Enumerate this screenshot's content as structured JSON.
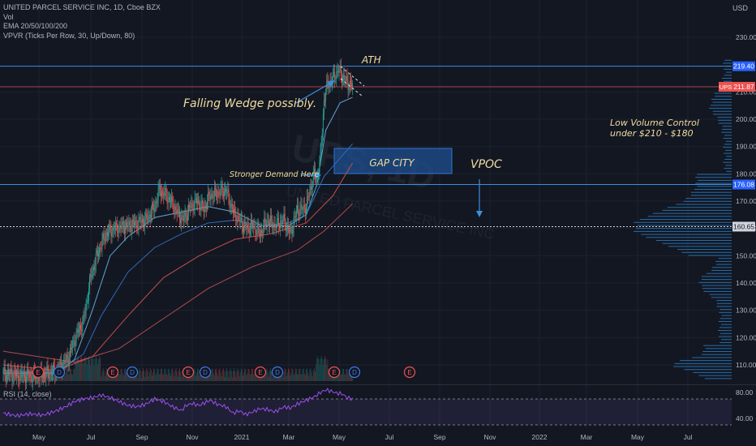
{
  "legend": {
    "symbol": "UNITED PARCEL SERVICE INC, 1D, Cboe BZX",
    "vol": "Vol",
    "ema": "EMA 20/50/100/200",
    "vpvr": "VPVR (Ticks Per Row, 30, Up/Down, 80)"
  },
  "rsi_label": "RSI (14, close)",
  "currency": "USD",
  "watermark": "UPS, 1D",
  "watermark_sub": "UNITED PARCEL SERVICE INC",
  "annotations": {
    "ath": "ATH",
    "wedge": "Falling Wedge possibly.",
    "demand": "Stronger Demand Here",
    "gap": "GAP CITY",
    "vpoc": "VPOC",
    "low_volume_1": "Low Volume Control",
    "low_volume_2": "under $210 - $180"
  },
  "price_labels": {
    "high": "219.40",
    "ticker": "UPS",
    "last": "211.87",
    "level_1": "176.08",
    "vpoc": "160.65"
  },
  "colors": {
    "background": "#131722",
    "up": "#26a69a",
    "down": "#ef5350",
    "ema20": "#5fa8d3",
    "ema50": "#2f6cb8",
    "ema100": "#c44e4e",
    "ema200": "#b04a50",
    "rsi": "#9c4ff0",
    "volume_profile": "#2a7bc0",
    "annotation": "#f0dca0",
    "level_line": "#3b8fe0",
    "last_price": "#ef5350"
  },
  "chart_data": [
    {
      "type": "candlestick",
      "title": "UNITED PARCEL SERVICE INC, 1D, Cboe BZX",
      "ylabel": "USD",
      "ylim": [
        102,
        242
      ],
      "y_ticks": [
        110,
        120,
        130,
        140,
        150,
        160,
        170,
        180,
        190,
        200,
        210,
        230
      ],
      "x_ticks": [
        "May",
        "Jul",
        "Sep",
        "Nov",
        "2021",
        "Mar",
        "May",
        "Jul",
        "Sep",
        "Nov",
        "2022",
        "Mar",
        "May",
        "Jul"
      ],
      "series": [
        {
          "name": "UPS",
          "close_path": [
            [
              0,
              107
            ],
            [
              20,
              106
            ],
            [
              40,
              106
            ],
            [
              60,
              108
            ],
            [
              72,
              112
            ],
            [
              82,
              121
            ],
            [
              90,
              126
            ],
            [
              98,
              142
            ],
            [
              105,
              150
            ],
            [
              115,
              158
            ],
            [
              125,
              160
            ],
            [
              140,
              161
            ],
            [
              150,
              162
            ],
            [
              160,
              163
            ],
            [
              170,
              168
            ],
            [
              175,
              174
            ],
            [
              180,
              173
            ],
            [
              188,
              170
            ],
            [
              195,
              166
            ],
            [
              202,
              163
            ],
            [
              210,
              168
            ],
            [
              218,
              170
            ],
            [
              225,
              167
            ],
            [
              232,
              172
            ],
            [
              240,
              173
            ],
            [
              250,
              174
            ],
            [
              258,
              166
            ],
            [
              265,
              163
            ],
            [
              272,
              160
            ],
            [
              280,
              161
            ],
            [
              288,
              158
            ],
            [
              296,
              163
            ],
            [
              305,
              161
            ],
            [
              315,
              163
            ],
            [
              322,
              158
            ],
            [
              330,
              167
            ],
            [
              336,
              167
            ],
            [
              340,
              168
            ],
            [
              345,
              175
            ],
            [
              349,
              180
            ],
            [
              352,
              178
            ],
            [
              356,
              186
            ],
            [
              360,
              207
            ],
            [
              364,
              213
            ],
            [
              368,
              214
            ],
            [
              372,
              216
            ],
            [
              376,
              218
            ],
            [
              380,
              216
            ],
            [
              384,
              214
            ],
            [
              388,
              213
            ],
            [
              392,
              212
            ]
          ]
        },
        {
          "name": "EMA 20",
          "values": [
            [
              0,
              107
            ],
            [
              60,
              107
            ],
            [
              80,
              112
            ],
            [
              100,
              130
            ],
            [
              120,
              150
            ],
            [
              140,
              157
            ],
            [
              170,
              164
            ],
            [
              200,
              166
            ],
            [
              230,
              168
            ],
            [
              260,
              166
            ],
            [
              290,
              161
            ],
            [
              320,
              161
            ],
            [
              340,
              165
            ],
            [
              352,
              176
            ],
            [
              362,
              196
            ],
            [
              378,
              206
            ],
            [
              392,
              208
            ]
          ]
        },
        {
          "name": "EMA 50",
          "values": [
            [
              0,
              108
            ],
            [
              60,
              107
            ],
            [
              90,
              114
            ],
            [
              110,
              128
            ],
            [
              140,
              144
            ],
            [
              170,
              153
            ],
            [
              200,
              158
            ],
            [
              230,
              162
            ],
            [
              260,
              163
            ],
            [
              290,
              161
            ],
            [
              320,
              162
            ],
            [
              340,
              165
            ],
            [
              360,
              179
            ],
            [
              392,
              191
            ]
          ]
        },
        {
          "name": "EMA 100",
          "values": [
            [
              0,
              110
            ],
            [
              60,
              108
            ],
            [
              100,
              113
            ],
            [
              140,
              128
            ],
            [
              180,
              142
            ],
            [
              220,
              150
            ],
            [
              260,
              156
            ],
            [
              300,
              158
            ],
            [
              340,
              162
            ],
            [
              370,
              172
            ],
            [
              392,
              184
            ]
          ]
        },
        {
          "name": "EMA 200",
          "values": [
            [
              0,
              115
            ],
            [
              80,
              111
            ],
            [
              130,
              116
            ],
            [
              180,
              127
            ],
            [
              230,
              138
            ],
            [
              280,
              146
            ],
            [
              330,
              152
            ],
            [
              360,
              159
            ],
            [
              392,
              169
            ]
          ]
        }
      ],
      "earnings_markers": [
        "E",
        "D",
        "E",
        "D",
        "E",
        "D",
        "E",
        "D",
        "E",
        "D",
        "E"
      ],
      "volume_profile": {
        "poc": 160.65,
        "dense_range": [
          150,
          180
        ],
        "sparse_range": [
          180,
          210
        ]
      },
      "levels": [
        219.4,
        211.87,
        176.08,
        160.65
      ]
    },
    {
      "type": "line",
      "title": "RSI (14, close)",
      "ylim": [
        25,
        90
      ],
      "y_ticks": [
        40,
        80
      ],
      "overbought": 70,
      "oversold": 30,
      "series": [
        {
          "name": "RSI",
          "values": [
            [
              0,
              48
            ],
            [
              15,
              44
            ],
            [
              30,
              47
            ],
            [
              45,
              45
            ],
            [
              60,
              52
            ],
            [
              70,
              58
            ],
            [
              80,
              66
            ],
            [
              90,
              70
            ],
            [
              100,
              72
            ],
            [
              110,
              76
            ],
            [
              120,
              72
            ],
            [
              130,
              66
            ],
            [
              140,
              60
            ],
            [
              150,
              58
            ],
            [
              160,
              62
            ],
            [
              170,
              70
            ],
            [
              180,
              66
            ],
            [
              190,
              58
            ],
            [
              200,
              52
            ],
            [
              205,
              60
            ],
            [
              212,
              63
            ],
            [
              220,
              60
            ],
            [
              226,
              64
            ],
            [
              232,
              68
            ],
            [
              240,
              62
            ],
            [
              250,
              58
            ],
            [
              258,
              48
            ],
            [
              265,
              52
            ],
            [
              272,
              46
            ],
            [
              280,
              50
            ],
            [
              288,
              55
            ],
            [
              296,
              54
            ],
            [
              305,
              50
            ],
            [
              315,
              58
            ],
            [
              322,
              56
            ],
            [
              330,
              62
            ],
            [
              340,
              68
            ],
            [
              350,
              74
            ],
            [
              356,
              80
            ],
            [
              362,
              84
            ],
            [
              368,
              82
            ],
            [
              374,
              79
            ],
            [
              380,
              78
            ],
            [
              386,
              72
            ],
            [
              392,
              70
            ]
          ]
        }
      ]
    }
  ]
}
